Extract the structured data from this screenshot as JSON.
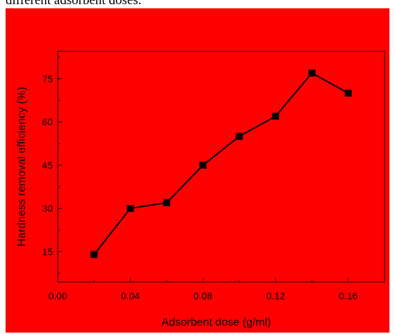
{
  "caption": {
    "text": "different adsorbent doses."
  },
  "colors": {
    "figure_background": "#ff0000",
    "line": "#000000",
    "marker": "#000000",
    "axes": "#000000"
  },
  "chart_data": {
    "type": "line",
    "title": "",
    "xlabel": "Adsorbent dose (g/ml)",
    "ylabel": "Hardness removal efficiency (%)",
    "x": [
      0.02,
      0.04,
      0.06,
      0.08,
      0.1,
      0.12,
      0.14,
      0.16
    ],
    "series": [
      {
        "values": [
          14,
          30,
          32,
          45,
          55,
          62,
          77,
          70
        ],
        "marker": "square"
      }
    ],
    "xlim": [
      0.0,
      0.18
    ],
    "ylim": [
      4.5,
      84.5
    ],
    "xticks": [
      "0.00",
      "0.04",
      "0.08",
      "0.12",
      "0.16"
    ],
    "yticks": [
      "15",
      "30",
      "45",
      "60",
      "75"
    ],
    "grid": false,
    "legend": "none"
  }
}
